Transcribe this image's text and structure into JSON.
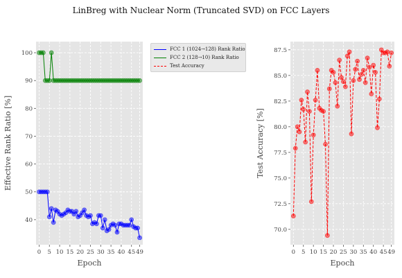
{
  "figure": {
    "suptitle": "LinBreg with Nuclear Norm (Truncated SVD) on FCC Layers"
  },
  "chart_data": [
    {
      "type": "line",
      "title": "",
      "xlabel": "Epoch",
      "ylabel": "Effective Rank Ratio [%]",
      "xlim": [
        -1.5,
        50.5
      ],
      "ylim": [
        31,
        104
      ],
      "xticks": [
        0,
        5,
        10,
        15,
        20,
        25,
        30,
        35,
        40,
        45,
        49
      ],
      "yticks": [
        40,
        50,
        60,
        70,
        80,
        90,
        100
      ],
      "grid": true,
      "legend_position": "outside-right",
      "x": [
        0,
        1,
        2,
        3,
        4,
        5,
        6,
        7,
        8,
        9,
        10,
        11,
        12,
        13,
        14,
        15,
        16,
        17,
        18,
        19,
        20,
        21,
        22,
        23,
        24,
        25,
        26,
        27,
        28,
        29,
        30,
        31,
        32,
        33,
        34,
        35,
        36,
        37,
        38,
        39,
        40,
        41,
        42,
        43,
        44,
        45,
        46,
        47,
        48,
        49
      ],
      "series": [
        {
          "name": "FCC 1 (1024→128) Rank Ratio",
          "color": "#0000ff",
          "style": "solid",
          "values": [
            50,
            50,
            50,
            50,
            50,
            41,
            44,
            39,
            43.5,
            43,
            42,
            41.5,
            42,
            42.5,
            43.5,
            43,
            43,
            42,
            43,
            41,
            41.5,
            42.5,
            43.5,
            41.5,
            41,
            41.5,
            38.5,
            39,
            38.5,
            41.5,
            41.5,
            37,
            40,
            36,
            36.5,
            38,
            38.5,
            38,
            35.5,
            38.5,
            38.5,
            38,
            38,
            38,
            38,
            40,
            37.5,
            37,
            37,
            33.5
          ]
        },
        {
          "name": "FCC 2 (128→10) Rank Ratio",
          "color": "#008000",
          "style": "solid",
          "values": [
            100,
            100,
            100,
            90,
            90,
            90,
            100,
            90,
            90,
            90,
            90,
            90,
            90,
            90,
            90,
            90,
            90,
            90,
            90,
            90,
            90,
            90,
            90,
            90,
            90,
            90,
            90,
            90,
            90,
            90,
            90,
            90,
            90,
            90,
            90,
            90,
            90,
            90,
            90,
            90,
            90,
            90,
            90,
            90,
            90,
            90,
            90,
            90,
            90,
            90
          ]
        }
      ]
    },
    {
      "type": "line",
      "title": "",
      "xlabel": "Epoch",
      "ylabel": "Test Accuracy [%]",
      "xlim": [
        -1.5,
        50.5
      ],
      "ylim": [
        68.5,
        88.3
      ],
      "xticks": [
        0,
        5,
        10,
        15,
        20,
        25,
        30,
        35,
        40,
        45,
        49
      ],
      "yticks": [
        70.0,
        72.5,
        75.0,
        77.5,
        80.0,
        82.5,
        85.0,
        87.5
      ],
      "grid": true,
      "x": [
        0,
        1,
        2,
        3,
        4,
        5,
        6,
        7,
        8,
        9,
        10,
        11,
        12,
        13,
        14,
        15,
        16,
        17,
        18,
        19,
        20,
        21,
        22,
        23,
        24,
        25,
        26,
        27,
        28,
        29,
        30,
        31,
        32,
        33,
        34,
        35,
        36,
        37,
        38,
        39,
        40,
        41,
        42,
        43,
        44,
        45,
        46,
        47,
        48,
        49
      ],
      "series": [
        {
          "name": "Test Accuracy",
          "color": "#ff0000",
          "style": "dashed",
          "values": [
            71.3,
            77.9,
            80.0,
            79.5,
            82.6,
            81.7,
            78.5,
            83.4,
            81.5,
            72.7,
            79.2,
            82.6,
            85.5,
            81.8,
            81.6,
            81.5,
            78.3,
            69.4,
            83.7,
            85.5,
            85.3,
            84.3,
            82.0,
            86.5,
            84.8,
            84.4,
            83.9,
            86.9,
            87.3,
            79.3,
            84.5,
            85.6,
            86.4,
            84.6,
            85.1,
            85.5,
            84.3,
            86.7,
            85.8,
            83.2,
            86.0,
            85.3,
            79.9,
            82.7,
            87.5,
            87.2,
            87.2,
            87.3,
            85.9,
            87.2
          ]
        }
      ]
    }
  ]
}
